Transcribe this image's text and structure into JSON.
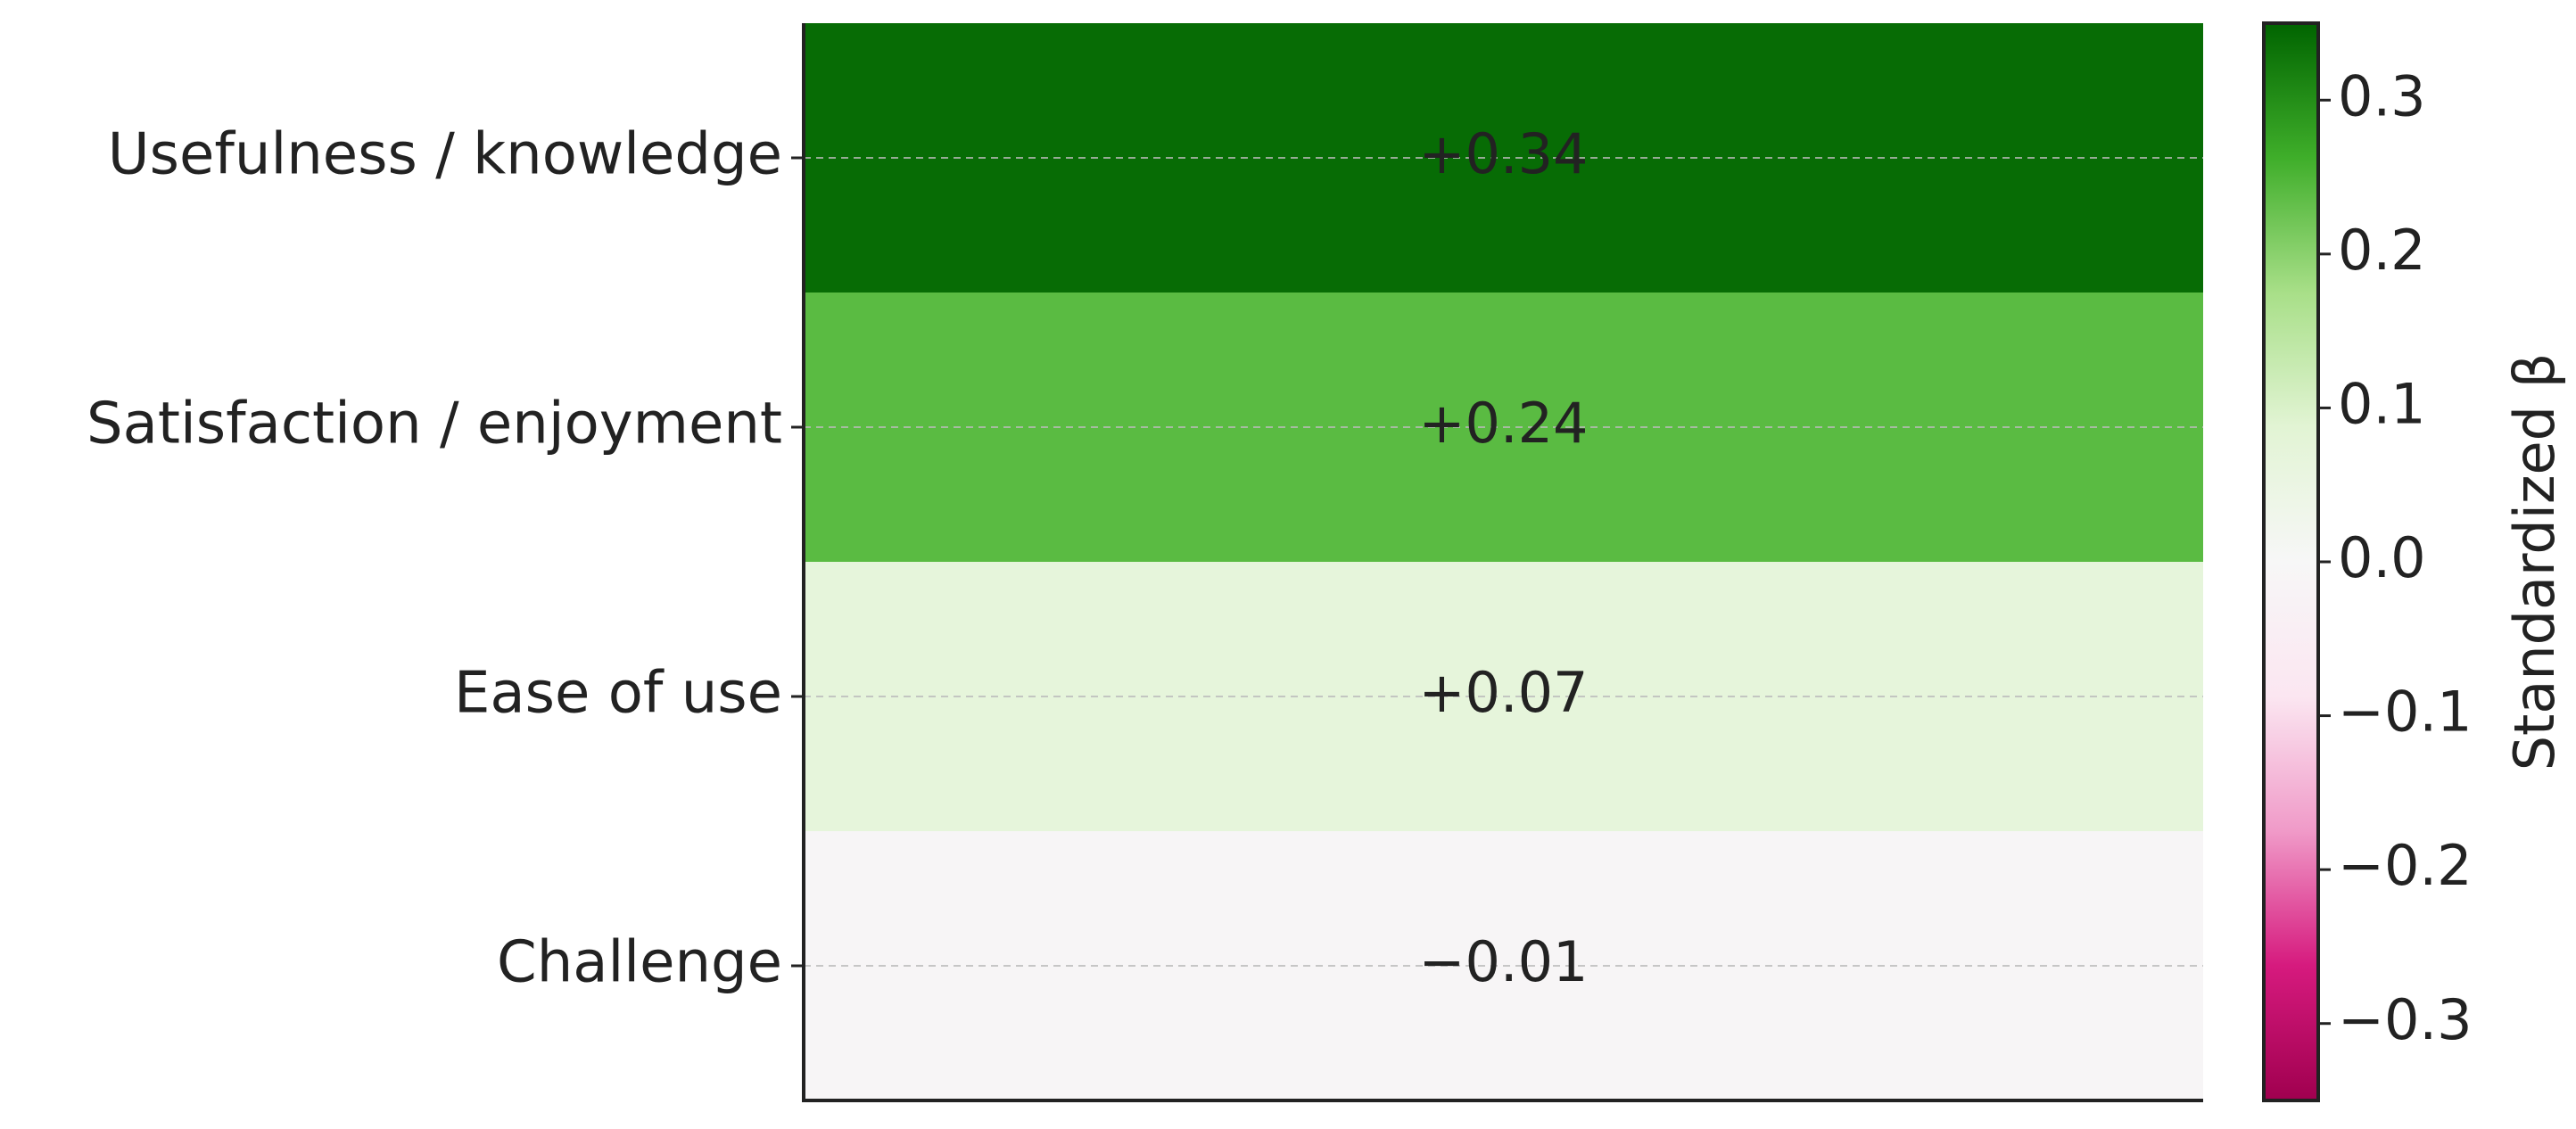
{
  "chart_data": {
    "type": "heatmap",
    "categories": [
      "Usefulness / knowledge",
      "Satisfaction / enjoyment",
      "Ease of use",
      "Challenge"
    ],
    "values": [
      0.34,
      0.24,
      0.07,
      -0.01
    ],
    "value_labels": [
      "+0.34",
      "+0.24",
      "+0.07",
      "−0.01"
    ],
    "colormap": [
      "#a0004f",
      "#d61a7e",
      "#f09ac8",
      "#fbe6f1",
      "#f7f7f7",
      "#e2f4d4",
      "#a8df88",
      "#3fae2a",
      "#006400"
    ],
    "clim": [
      -0.35,
      0.35
    ],
    "cticks": [
      {
        "value": 0.3,
        "label": "0.3"
      },
      {
        "value": 0.2,
        "label": "0.2"
      },
      {
        "value": 0.1,
        "label": "0.1"
      },
      {
        "value": 0.0,
        "label": "0.0"
      },
      {
        "value": -0.1,
        "label": "−0.1"
      },
      {
        "value": -0.2,
        "label": "−0.2"
      },
      {
        "value": -0.3,
        "label": "−0.3"
      }
    ],
    "colorbar_label": "Standardized β",
    "grid": true
  }
}
